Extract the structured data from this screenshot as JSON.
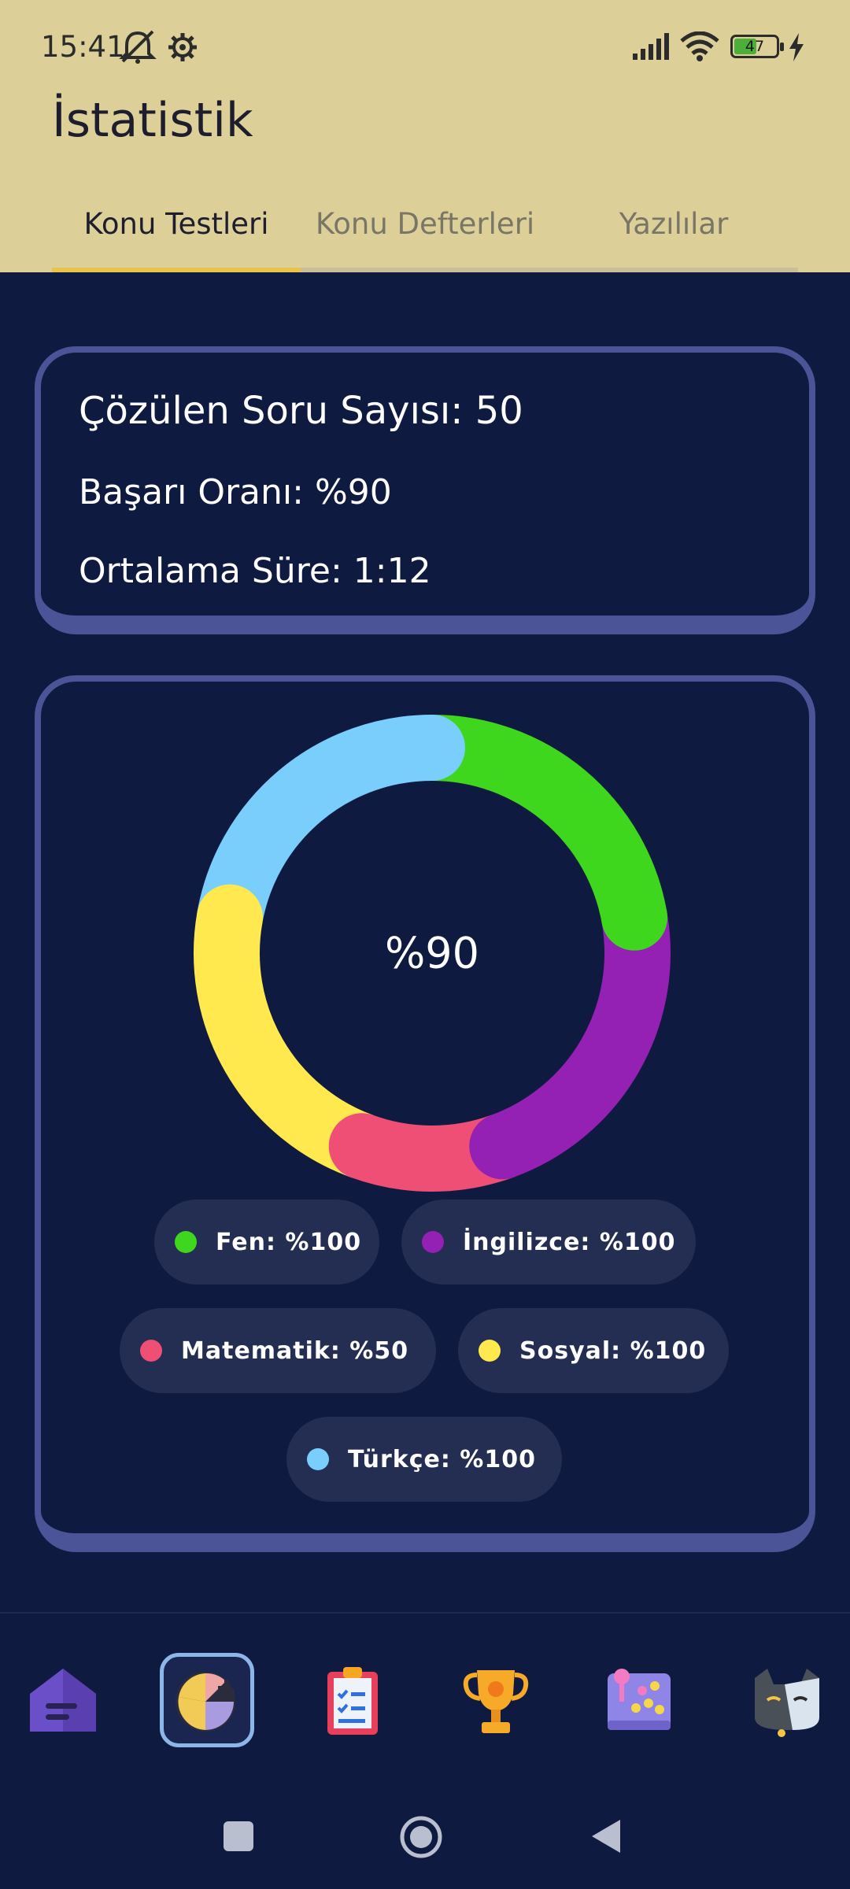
{
  "status_bar": {
    "time": "15:41",
    "icons": [
      "mute-icon",
      "settings-icon",
      "signal-icon",
      "wifi-icon",
      "battery-icon",
      "charging-icon"
    ],
    "battery": "47"
  },
  "header": {
    "title": "İstatistik",
    "tabs": [
      {
        "label": "Konu Testleri",
        "active": true
      },
      {
        "label": "Konu Defterleri",
        "active": false
      },
      {
        "label": "Yazılılar",
        "active": false
      }
    ]
  },
  "stats": {
    "solved": "Çözülen Soru Sayısı: 50",
    "success": "Başarı Oranı: %90",
    "avg_time": "Ortalama Süre: 1:12"
  },
  "chart_data": {
    "type": "pie",
    "center_label": "%90",
    "categories": [
      "Fen",
      "İngilizce",
      "Matematik",
      "Sosyal",
      "Türkçe"
    ],
    "values": [
      100,
      100,
      50,
      100,
      100
    ],
    "colors": [
      "#3FD61E",
      "#9420B4",
      "#EF4E75",
      "#FFE94E",
      "#79CEFC"
    ]
  },
  "legend": [
    {
      "label": "Fen: %100",
      "color": "#3FD61E"
    },
    {
      "label": "İngilizce: %100",
      "color": "#9420B4"
    },
    {
      "label": "Matematik: %50",
      "color": "#EF4E75"
    },
    {
      "label": "Sosyal: %100",
      "color": "#FFE94E"
    },
    {
      "label": "Türkçe: %100",
      "color": "#79CEFC"
    }
  ],
  "bottom_nav": [
    {
      "icon": "home-icon",
      "active": false
    },
    {
      "icon": "statistics-icon",
      "active": true
    },
    {
      "icon": "clipboard-checklist-icon",
      "active": false
    },
    {
      "icon": "trophy-icon",
      "active": false
    },
    {
      "icon": "game-board-icon",
      "active": false
    },
    {
      "icon": "cat-avatar-icon",
      "active": false
    }
  ],
  "system_nav": [
    "recents-button",
    "home-button",
    "back-button"
  ]
}
